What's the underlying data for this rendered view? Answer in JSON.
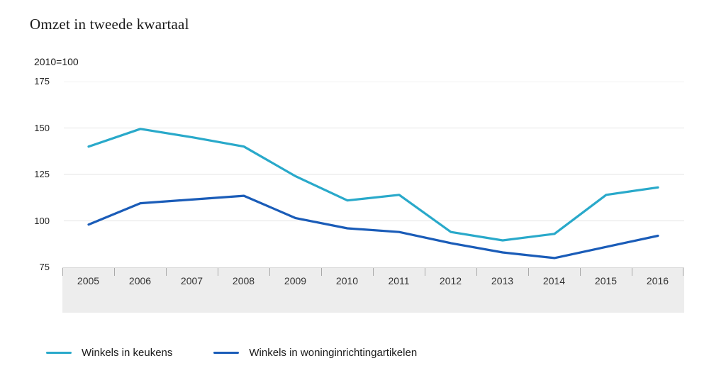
{
  "chart": {
    "title": "Omzet in tweede kwartaal",
    "unit_label": "2010=100"
  },
  "chart_data": {
    "type": "line",
    "title": "Omzet in tweede kwartaal",
    "subtitle": "2010=100",
    "x": [
      "2005",
      "2006",
      "2007",
      "2008",
      "2009",
      "2010",
      "2011",
      "2012",
      "2013",
      "2014",
      "2015",
      "2016"
    ],
    "series": [
      {
        "name": "Winkels in keukens",
        "color": "#29a9ca",
        "values": [
          140,
          149.5,
          145,
          140,
          124,
          111,
          114,
          94,
          89.5,
          93,
          114,
          118
        ]
      },
      {
        "name": "Winkels in woninginrichtingartikelen",
        "color": "#1a5cb8",
        "values": [
          98,
          109.5,
          111.5,
          113.5,
          101.5,
          96,
          94,
          88,
          83,
          80,
          86,
          92
        ]
      }
    ],
    "ylim": [
      75,
      175
    ],
    "yticks": [
      175,
      150,
      125,
      100,
      75
    ],
    "grid": "horizontal",
    "gridline_color": "#e4e4e4",
    "axis_band_color": "#ededed",
    "legend_position": "bottom-left"
  }
}
